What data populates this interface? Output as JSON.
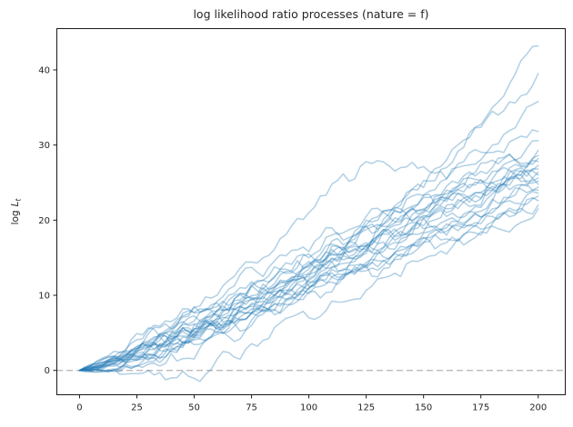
{
  "chart": {
    "title": "log likelihood ratio processes (nature = f)",
    "ylabel_prefix": "log",
    "ylabel_var": "L",
    "ylabel_sub": "t"
  },
  "chart_data": {
    "type": "line",
    "title": "log likelihood ratio processes (nature = f)",
    "xlabel": "",
    "ylabel": "log L_t",
    "xlim": [
      -10.1,
      212.0
    ],
    "ylim": [
      -3.3,
      45.56
    ],
    "x_ticks": [
      0,
      25,
      50,
      75,
      100,
      125,
      150,
      175,
      200
    ],
    "y_ticks": [
      0,
      10,
      20,
      30,
      40
    ],
    "grid": false,
    "legend": "none",
    "n_paths": 23,
    "line_color": "#1f77b4",
    "line_opacity": 0.35,
    "line_width": 1.5,
    "zero_line": {
      "y": 0,
      "style": "dashed",
      "color": "#b3b3b3"
    },
    "spine_color": "#1a1a1a",
    "x": [
      0,
      20,
      40,
      60,
      80,
      100,
      120,
      140,
      160,
      180,
      200
    ],
    "series": [
      {
        "name": "path-01",
        "values": [
          0,
          2.8,
          6.5,
          9.0,
          12.0,
          15.5,
          18.5,
          22.0,
          27.0,
          35.0,
          43.2
        ]
      },
      {
        "name": "path-02",
        "values": [
          0,
          2.0,
          4.5,
          8.0,
          11.0,
          14.5,
          18.0,
          22.5,
          28.0,
          34.5,
          39.5
        ]
      },
      {
        "name": "path-03",
        "values": [
          0,
          2.0,
          5.5,
          10.0,
          15.0,
          21.0,
          25.5,
          27.0,
          25.5,
          30.0,
          35.8
        ]
      },
      {
        "name": "path-04",
        "values": [
          0,
          2.5,
          5.5,
          8.5,
          12.0,
          15.0,
          18.0,
          21.0,
          25.5,
          29.0,
          31.8
        ]
      },
      {
        "name": "path-05",
        "values": [
          0,
          1.0,
          3.5,
          6.0,
          9.5,
          13.5,
          16.5,
          20.0,
          24.0,
          28.0,
          30.6
        ]
      },
      {
        "name": "path-06",
        "values": [
          0,
          2.2,
          4.2,
          7.2,
          10.2,
          12.8,
          16.2,
          19.8,
          23.5,
          26.5,
          29.3
        ]
      },
      {
        "name": "path-07",
        "values": [
          0,
          1.8,
          5.0,
          8.0,
          11.5,
          14.0,
          17.5,
          21.5,
          24.5,
          27.0,
          28.6
        ]
      },
      {
        "name": "path-08",
        "values": [
          0,
          1.2,
          3.0,
          5.5,
          8.5,
          12.0,
          15.5,
          18.5,
          22.0,
          25.5,
          28.2
        ]
      },
      {
        "name": "path-09",
        "values": [
          0,
          2.6,
          5.8,
          9.2,
          12.5,
          15.8,
          19.0,
          21.0,
          23.0,
          25.0,
          27.8
        ]
      },
      {
        "name": "path-10",
        "values": [
          0,
          1.5,
          4.5,
          7.0,
          10.0,
          13.0,
          15.0,
          18.0,
          21.5,
          24.5,
          27.3
        ]
      },
      {
        "name": "path-11",
        "values": [
          0,
          0.8,
          2.5,
          5.0,
          8.0,
          11.0,
          14.5,
          18.0,
          21.0,
          24.0,
          26.8
        ]
      },
      {
        "name": "path-12",
        "values": [
          0,
          2.0,
          4.8,
          7.8,
          10.8,
          14.2,
          17.0,
          19.5,
          22.5,
          25.0,
          26.4
        ]
      },
      {
        "name": "path-13",
        "values": [
          0,
          1.0,
          3.8,
          6.5,
          9.0,
          12.5,
          16.0,
          19.0,
          22.8,
          24.2,
          26.0
        ]
      },
      {
        "name": "path-14",
        "values": [
          0,
          1.6,
          4.2,
          6.8,
          9.8,
          12.2,
          14.8,
          17.5,
          20.5,
          23.5,
          25.6
        ]
      },
      {
        "name": "path-15",
        "values": [
          0,
          0.5,
          2.8,
          5.5,
          8.2,
          11.5,
          14.0,
          17.0,
          19.5,
          22.5,
          25.2
        ]
      },
      {
        "name": "path-16",
        "values": [
          0,
          2.4,
          5.2,
          7.5,
          10.5,
          13.8,
          16.8,
          20.5,
          23.0,
          24.0,
          24.8
        ]
      },
      {
        "name": "path-17",
        "values": [
          0,
          1.4,
          3.2,
          6.2,
          9.2,
          11.8,
          15.2,
          17.8,
          20.0,
          22.8,
          24.4
        ]
      },
      {
        "name": "path-18",
        "values": [
          0,
          0.6,
          2.2,
          4.8,
          7.5,
          10.5,
          13.5,
          16.5,
          19.0,
          21.5,
          24.0
        ]
      },
      {
        "name": "path-19",
        "values": [
          0,
          1.8,
          4.0,
          6.5,
          8.8,
          11.2,
          13.8,
          16.0,
          18.5,
          21.0,
          23.6
        ]
      },
      {
        "name": "path-20",
        "values": [
          0,
          -0.5,
          -1.0,
          1.5,
          4.0,
          7.0,
          9.5,
          12.5,
          15.5,
          19.5,
          23.2
        ]
      },
      {
        "name": "path-21",
        "values": [
          0,
          1.2,
          3.5,
          5.8,
          8.0,
          10.8,
          13.2,
          15.5,
          18.0,
          20.5,
          22.6
        ]
      },
      {
        "name": "path-22",
        "values": [
          0,
          0.9,
          2.6,
          5.2,
          7.8,
          10.2,
          12.8,
          15.2,
          17.5,
          19.8,
          22.0
        ]
      },
      {
        "name": "path-23",
        "values": [
          0,
          1.5,
          3.8,
          6.0,
          8.5,
          11.0,
          13.0,
          14.8,
          17.0,
          19.2,
          21.5
        ]
      }
    ]
  }
}
